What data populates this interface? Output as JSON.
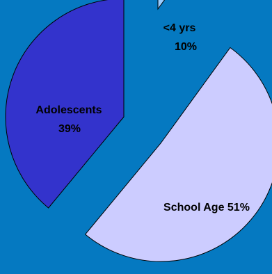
{
  "background_color": "#0579c1",
  "chart_data": {
    "type": "pie",
    "title": "",
    "exploded": true,
    "outline_color": "#000000",
    "slices": [
      {
        "label": "<4 yrs",
        "value": 10,
        "value_label": "10%",
        "color": "#99ccff"
      },
      {
        "label": "School Age",
        "value": 51,
        "value_label": "School Age 51%",
        "color": "#ccccff"
      },
      {
        "label": "Adolescents",
        "value": 39,
        "value_label": "39%",
        "color": "#3333cc"
      }
    ]
  }
}
